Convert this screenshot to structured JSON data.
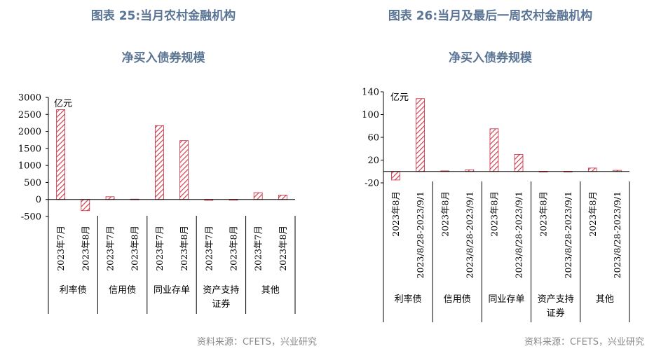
{
  "source_text": "资料来源：CFETS，兴业研究",
  "colors": {
    "title": "#5a7494",
    "bar_stroke": "#c8283c",
    "bar_hatch": "#d24050",
    "source": "#8a8a8a"
  },
  "chart_data": [
    {
      "type": "bar",
      "title_line1": "图表 25:当月农村金融机构",
      "title_line2": "净买入债券规模",
      "unit": "亿元",
      "ylim": [
        -500,
        3000
      ],
      "yticks": [
        -500,
        0,
        500,
        1000,
        1500,
        2000,
        2500,
        3000
      ],
      "grid": false,
      "categories": [
        "2023年7月",
        "2023年8月",
        "2023年7月",
        "2023年8月",
        "2023年7月",
        "2023年8月",
        "2023年7月",
        "2023年8月",
        "2023年7月",
        "2023年8月"
      ],
      "groups": [
        {
          "label_lines": [
            "利率债"
          ],
          "count": 2
        },
        {
          "label_lines": [
            "信用债"
          ],
          "count": 2
        },
        {
          "label_lines": [
            "同业存单"
          ],
          "count": 2
        },
        {
          "label_lines": [
            "资产支持",
            "证券"
          ],
          "count": 2
        },
        {
          "label_lines": [
            "其他"
          ],
          "count": 2
        }
      ],
      "values": [
        2640,
        -330,
        80,
        10,
        2170,
        1730,
        -25,
        -20,
        200,
        130
      ]
    },
    {
      "type": "bar",
      "title_line1": "图表 26:当月及最后一周农村金融机构",
      "title_line2": "净买入债券规模",
      "unit": "亿元",
      "ylim": [
        -20,
        140
      ],
      "yticks": [
        -20,
        20,
        60,
        100,
        140
      ],
      "grid": false,
      "categories": [
        "2023年8月",
        "2023/8/28-2023/9/1",
        "2023年8月",
        "2023/8/28-2023/9/1",
        "2023年8月",
        "2023/8/28-2023/9/1",
        "2023年8月",
        "2023/8/28-2023/9/1",
        "2023年8月",
        "2023/8/28-2023/9/1"
      ],
      "groups": [
        {
          "label_lines": [
            "利率债"
          ],
          "count": 2
        },
        {
          "label_lines": [
            "信用债"
          ],
          "count": 2
        },
        {
          "label_lines": [
            "同业存单"
          ],
          "count": 2
        },
        {
          "label_lines": [
            "资产支持",
            "证券"
          ],
          "count": 2
        },
        {
          "label_lines": [
            "其他"
          ],
          "count": 2
        }
      ],
      "values": [
        -15,
        128,
        1,
        3,
        75,
        30,
        -1,
        0,
        6,
        2
      ]
    }
  ]
}
